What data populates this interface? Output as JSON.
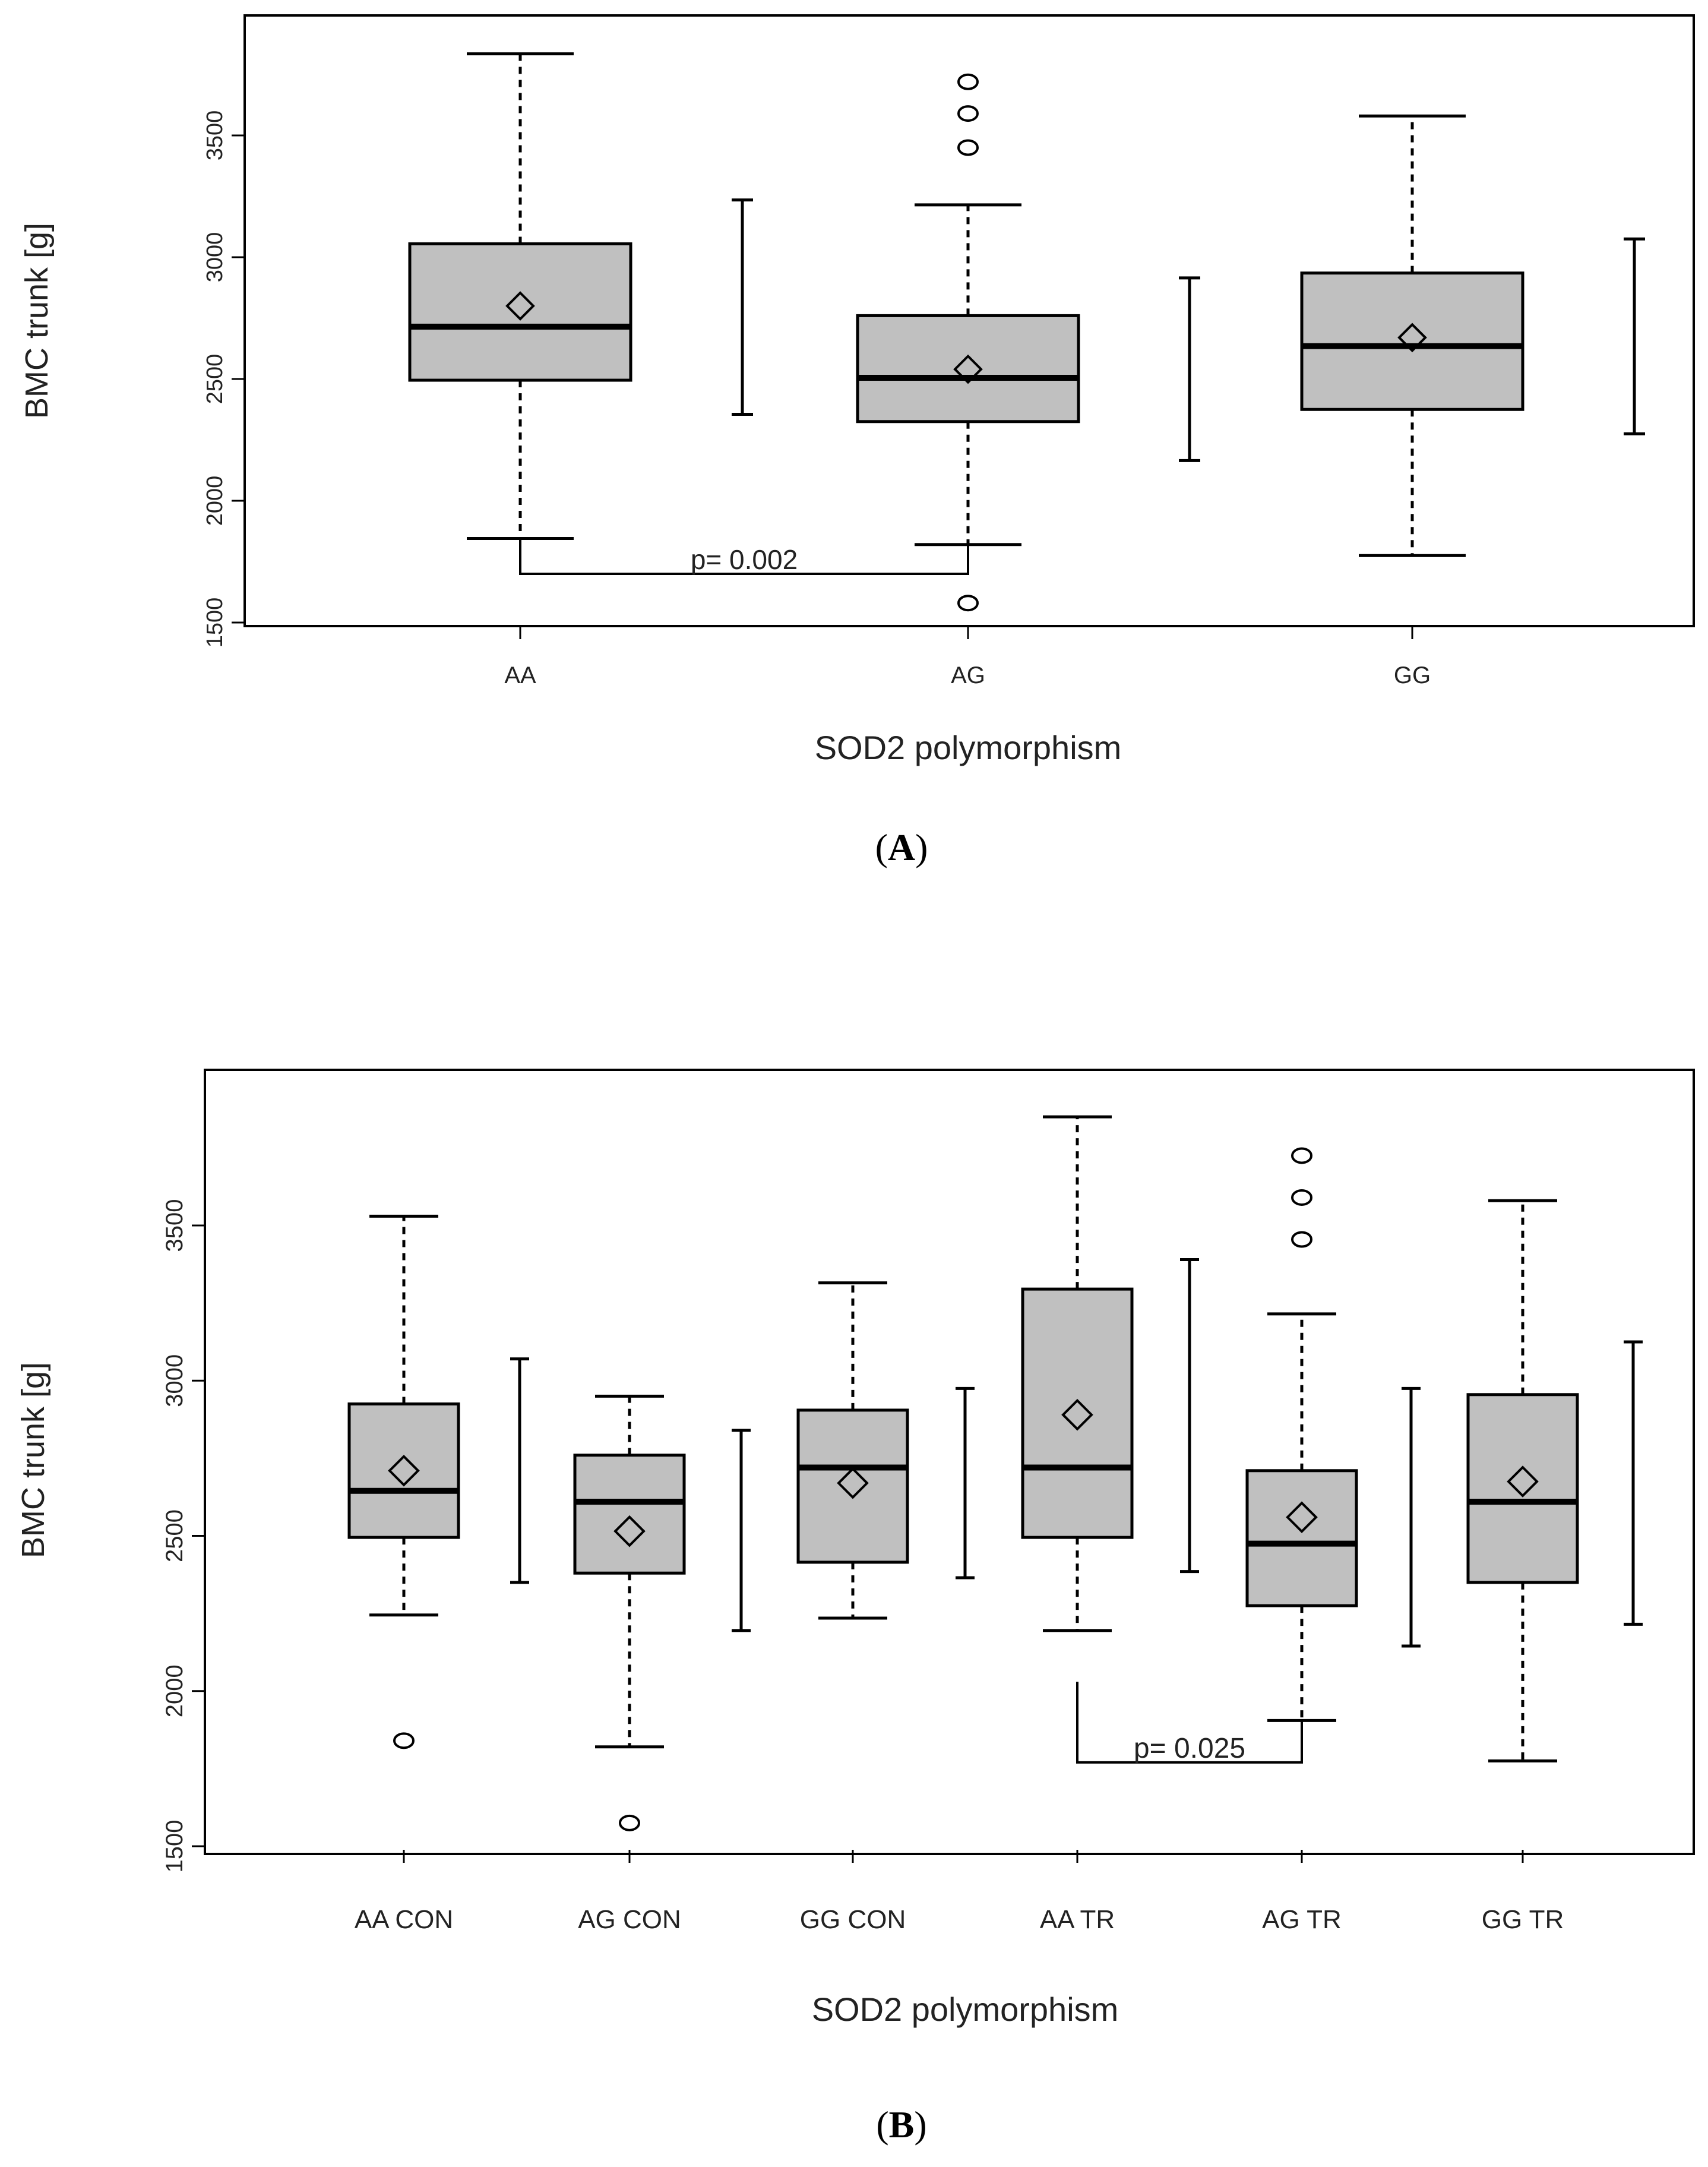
{
  "chart_data": [
    {
      "id": "A",
      "type": "boxplot",
      "panel_label": "A",
      "xlabel": "SOD2 polymorphism",
      "ylabel": "BMC trunk [g]",
      "ylim": [
        1500,
        3900
      ],
      "yticks": [
        1500,
        2000,
        2500,
        3000,
        3500
      ],
      "ytick_labels": [
        "1500",
        "2000",
        "2500",
        "3000",
        "3500"
      ],
      "categories": [
        "AA",
        "AG",
        "GG"
      ],
      "box_color": "#c0c0c0",
      "boxes": [
        {
          "label": "AA",
          "whisker_low": 1845,
          "q1": 2495,
          "median": 2715,
          "q3": 3055,
          "whisker_high": 3835,
          "mean": 2800,
          "outliers": []
        },
        {
          "label": "AG",
          "whisker_low": 1820,
          "q1": 2325,
          "median": 2505,
          "q3": 2760,
          "whisker_high": 3215,
          "mean": 2540,
          "outliers": [
            1580,
            3450,
            3590,
            3720
          ]
        },
        {
          "label": "GG",
          "whisker_low": 1775,
          "q1": 2375,
          "median": 2635,
          "q3": 2935,
          "whisker_high": 3580,
          "mean": 2670,
          "outliers": []
        }
      ],
      "intervals": [
        {
          "after": "AA",
          "low": 2355,
          "high": 3235
        },
        {
          "after": "AG",
          "low": 2165,
          "high": 2915
        },
        {
          "after": "GG",
          "low": 2275,
          "high": 3075
        }
      ],
      "comparisons": [
        {
          "from": "AA",
          "to": "AG",
          "text": "p= 0.002",
          "bracket_y": 1700,
          "from_top": 1845,
          "to_top": 1820
        }
      ]
    },
    {
      "id": "B",
      "type": "boxplot",
      "panel_label": "B",
      "xlabel": "SOD2 polymorphism",
      "ylabel": "BMC trunk [g]",
      "ylim": [
        1500,
        3900
      ],
      "yticks": [
        1500,
        2000,
        2500,
        3000,
        3500
      ],
      "ytick_labels": [
        "1500",
        "2000",
        "2500",
        "3000",
        "3500"
      ],
      "categories": [
        "AA CON",
        "AG CON",
        "GG CON",
        "AA TR",
        "AG TR",
        "GG TR"
      ],
      "box_color": "#c0c0c0",
      "boxes": [
        {
          "label": "AA CON",
          "whisker_low": 2245,
          "q1": 2495,
          "median": 2645,
          "q3": 2925,
          "whisker_high": 3530,
          "mean": 2710,
          "outliers": [
            1840
          ]
        },
        {
          "label": "AG CON",
          "whisker_low": 1820,
          "q1": 2380,
          "median": 2610,
          "q3": 2760,
          "whisker_high": 2950,
          "mean": 2515,
          "outliers": [
            1575
          ]
        },
        {
          "label": "GG CON",
          "whisker_low": 2235,
          "q1": 2415,
          "median": 2720,
          "q3": 2905,
          "whisker_high": 3315,
          "mean": 2670,
          "outliers": []
        },
        {
          "label": "AA TR",
          "whisker_low": 2195,
          "q1": 2495,
          "median": 2720,
          "q3": 3295,
          "whisker_high": 3850,
          "mean": 2890,
          "outliers": []
        },
        {
          "label": "AG TR",
          "whisker_low": 1905,
          "q1": 2275,
          "median": 2475,
          "q3": 2710,
          "whisker_high": 3215,
          "mean": 2560,
          "outliers": [
            3455,
            3590,
            3725
          ]
        },
        {
          "label": "GG TR",
          "whisker_low": 1775,
          "q1": 2350,
          "median": 2610,
          "q3": 2955,
          "whisker_high": 3580,
          "mean": 2675,
          "outliers": []
        }
      ],
      "intervals": [
        {
          "after": "AA CON",
          "low": 2350,
          "high": 3070
        },
        {
          "after": "AG CON",
          "low": 2195,
          "high": 2840
        },
        {
          "after": "GG CON",
          "low": 2365,
          "high": 2975
        },
        {
          "after": "AA TR",
          "low": 2385,
          "high": 3390
        },
        {
          "after": "AG TR",
          "low": 2145,
          "high": 2975
        },
        {
          "after": "GG TR",
          "low": 2215,
          "high": 3125
        }
      ],
      "comparisons": [
        {
          "from": "AA TR",
          "to": "AG TR",
          "text": "p= 0.025",
          "bracket_y": 1770,
          "from_top": 2030,
          "to_top": 1905
        }
      ]
    }
  ]
}
